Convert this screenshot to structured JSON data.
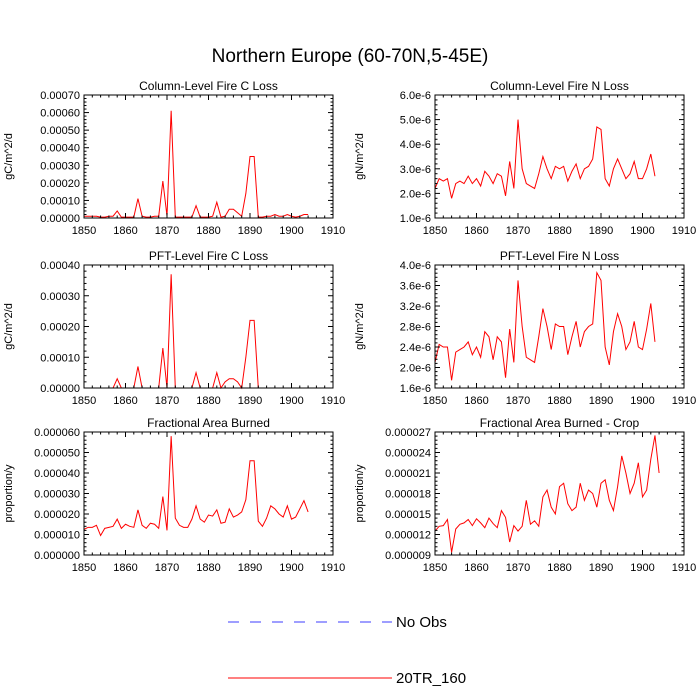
{
  "title": "Northern Europe (60-70N,5-45E)",
  "legend": [
    {
      "label": "No Obs",
      "color": "#3c3cff",
      "dashed": true
    },
    {
      "label": "20TR_160",
      "color": "#ff0000",
      "dashed": false
    }
  ],
  "chart_data": [
    {
      "type": "line",
      "title": "Column-Level Fire C Loss",
      "ylabel": "gC/m^2/d",
      "xlim": [
        1850,
        1910
      ],
      "ylim": [
        0,
        0.0007
      ],
      "xticks": [
        1850,
        1860,
        1870,
        1880,
        1890,
        1900,
        1910
      ],
      "xtick_labels": [
        "1850",
        "1860",
        "1870",
        "1880",
        "1890",
        "1900",
        "1910"
      ],
      "yticks": [
        0,
        0.0001,
        0.0002,
        0.0003,
        0.0004,
        0.0005,
        0.0006,
        0.0007
      ],
      "ytick_labels": [
        "0.00000",
        "0.00010",
        "0.00020",
        "0.00030",
        "0.00040",
        "0.00050",
        "0.00060",
        "0.00070"
      ],
      "series": [
        {
          "name": "20TR_160",
          "x_start": 1850,
          "values": [
            1e-05,
            1e-05,
            1e-05,
            1e-05,
            5e-06,
            5e-06,
            1e-05,
            1e-05,
            4e-05,
            5e-06,
            5e-06,
            5e-06,
            5e-06,
            0.00011,
            1e-05,
            5e-06,
            5e-06,
            1e-05,
            1e-05,
            0.00021,
            1e-05,
            0.00061,
            5e-06,
            5e-06,
            5e-06,
            5e-06,
            5e-06,
            7e-05,
            5e-06,
            5e-06,
            5e-06,
            1e-05,
            9e-05,
            5e-06,
            1e-05,
            5e-05,
            5e-05,
            3e-05,
            1e-05,
            0.00014,
            0.00035,
            0.00035,
            5e-06,
            5e-06,
            1e-05,
            1e-05,
            2e-05,
            1e-05,
            1e-05,
            2e-05,
            1e-05,
            5e-06,
            1e-05,
            2e-05,
            2e-05
          ]
        }
      ]
    },
    {
      "type": "line",
      "title": "Column-Level Fire N Loss",
      "ylabel": "gN/m^2/d",
      "xlim": [
        1850,
        1910
      ],
      "ylim": [
        1e-06,
        6e-06
      ],
      "xticks": [
        1850,
        1860,
        1870,
        1880,
        1890,
        1900,
        1910
      ],
      "xtick_labels": [
        "1850",
        "1860",
        "1870",
        "1880",
        "1890",
        "1900",
        "1910"
      ],
      "yticks": [
        1e-06,
        2e-06,
        3e-06,
        4e-06,
        5e-06,
        6e-06
      ],
      "ytick_labels": [
        "1.0e-6",
        "2.0e-6",
        "3.0e-6",
        "4.0e-6",
        "5.0e-6",
        "6.0e-6"
      ],
      "series": [
        {
          "name": "20TR_160",
          "x_start": 1850,
          "values": [
            2.2e-06,
            2.6e-06,
            2.5e-06,
            2.6e-06,
            1.8e-06,
            2.4e-06,
            2.5e-06,
            2.4e-06,
            2.7e-06,
            2.4e-06,
            2.6e-06,
            2.3e-06,
            2.9e-06,
            2.7e-06,
            2.4e-06,
            2.8e-06,
            2.7e-06,
            1.9e-06,
            3.3e-06,
            2.2e-06,
            5e-06,
            3e-06,
            2.4e-06,
            2.3e-06,
            2.2e-06,
            2.8e-06,
            3.5e-06,
            3e-06,
            2.6e-06,
            3.1e-06,
            3e-06,
            3.1e-06,
            2.5e-06,
            2.9e-06,
            3.2e-06,
            2.6e-06,
            3e-06,
            3.1e-06,
            3.4e-06,
            4.7e-06,
            4.6e-06,
            2.6e-06,
            2.3e-06,
            3e-06,
            3.4e-06,
            3e-06,
            2.6e-06,
            2.8e-06,
            3.3e-06,
            2.6e-06,
            2.6e-06,
            3e-06,
            3.6e-06,
            2.7e-06
          ]
        }
      ]
    },
    {
      "type": "line",
      "title": "PFT-Level Fire C Loss",
      "ylabel": "gC/m^2/d",
      "xlim": [
        1850,
        1910
      ],
      "ylim": [
        0,
        0.0004
      ],
      "xticks": [
        1850,
        1860,
        1870,
        1880,
        1890,
        1900,
        1910
      ],
      "xtick_labels": [
        "1850",
        "1860",
        "1870",
        "1880",
        "1890",
        "1900",
        "1910"
      ],
      "yticks": [
        0,
        0.0001,
        0.0002,
        0.0003,
        0.0004
      ],
      "ytick_labels": [
        "0.00000",
        "0.00010",
        "0.00020",
        "0.00030",
        "0.00040"
      ],
      "series": [
        {
          "name": "20TR_160",
          "x_start": 1850,
          "values": [
            0,
            0,
            0,
            0,
            0,
            0,
            0,
            0,
            3e-05,
            0,
            0,
            0,
            0,
            7e-05,
            0,
            0,
            0,
            0,
            0,
            0.00013,
            0,
            0.00037,
            0,
            0,
            0,
            0,
            0,
            5e-05,
            0,
            0,
            0,
            0,
            5e-05,
            0,
            2e-05,
            3e-05,
            3e-05,
            2e-05,
            0,
            0.0001,
            0.00022,
            0.00022,
            0,
            0,
            0,
            0,
            0,
            0,
            0,
            0,
            0,
            0,
            0,
            0,
            0
          ]
        }
      ]
    },
    {
      "type": "line",
      "title": "PFT-Level Fire N Loss",
      "ylabel": "gN/m^2/d",
      "xlim": [
        1850,
        1910
      ],
      "ylim": [
        1.6e-06,
        4e-06
      ],
      "xticks": [
        1850,
        1860,
        1870,
        1880,
        1890,
        1900,
        1910
      ],
      "xtick_labels": [
        "1850",
        "1860",
        "1870",
        "1880",
        "1890",
        "1900",
        "1910"
      ],
      "yticks": [
        1.6e-06,
        2e-06,
        2.4e-06,
        2.8e-06,
        3.2e-06,
        3.6e-06,
        4e-06
      ],
      "ytick_labels": [
        "1.6e-6",
        "2.0e-6",
        "2.4e-6",
        "2.8e-6",
        "3.2e-6",
        "3.6e-6",
        "4.0e-6"
      ],
      "series": [
        {
          "name": "20TR_160",
          "x_start": 1850,
          "values": [
            2.1e-06,
            2.45e-06,
            2.4e-06,
            2.4e-06,
            1.75e-06,
            2.3e-06,
            2.35e-06,
            2.4e-06,
            2.5e-06,
            2.25e-06,
            2.4e-06,
            2.2e-06,
            2.7e-06,
            2.6e-06,
            2.15e-06,
            2.6e-06,
            2.5e-06,
            1.8e-06,
            2.75e-06,
            2.1e-06,
            3.7e-06,
            2.8e-06,
            2.2e-06,
            2.15e-06,
            2.1e-06,
            2.6e-06,
            3.15e-06,
            2.8e-06,
            2.35e-06,
            2.85e-06,
            2.8e-06,
            2.8e-06,
            2.25e-06,
            2.6e-06,
            2.9e-06,
            2.4e-06,
            2.7e-06,
            2.8e-06,
            2.85e-06,
            3.85e-06,
            3.7e-06,
            2.4e-06,
            2.05e-06,
            2.7e-06,
            3.05e-06,
            2.8e-06,
            2.35e-06,
            2.5e-06,
            2.9e-06,
            2.4e-06,
            2.35e-06,
            2.75e-06,
            3.25e-06,
            2.5e-06
          ]
        }
      ]
    },
    {
      "type": "line",
      "title": "Fractional Area Burned",
      "ylabel": "proportion/y",
      "xlim": [
        1850,
        1910
      ],
      "ylim": [
        0,
        6e-05
      ],
      "xticks": [
        1850,
        1860,
        1870,
        1880,
        1890,
        1900,
        1910
      ],
      "xtick_labels": [
        "1850",
        "1860",
        "1870",
        "1880",
        "1890",
        "1900",
        "1910"
      ],
      "yticks": [
        0,
        1e-05,
        2e-05,
        3e-05,
        4e-05,
        5e-05,
        6e-05
      ],
      "ytick_labels": [
        "0.000000",
        "0.000010",
        "0.000020",
        "0.000030",
        "0.000040",
        "0.000050",
        "0.000060"
      ],
      "series": [
        {
          "name": "20TR_160",
          "x_start": 1850,
          "values": [
            1.25e-05,
            1.35e-05,
            1.35e-05,
            1.45e-05,
            9.5e-06,
            1.3e-05,
            1.35e-05,
            1.4e-05,
            1.75e-05,
            1.3e-05,
            1.5e-05,
            1.4e-05,
            1.35e-05,
            2.2e-05,
            1.45e-05,
            1.3e-05,
            1.55e-05,
            1.5e-05,
            1.3e-05,
            2.85e-05,
            1.2e-05,
            5.8e-05,
            1.8e-05,
            1.45e-05,
            1.35e-05,
            1.35e-05,
            1.75e-05,
            2.4e-05,
            1.75e-05,
            1.6e-05,
            1.95e-05,
            1.9e-05,
            2.2e-05,
            1.55e-05,
            1.6e-05,
            2.25e-05,
            1.85e-05,
            1.95e-05,
            2.1e-05,
            2.7e-05,
            4.6e-05,
            4.6e-05,
            1.65e-05,
            1.4e-05,
            1.8e-05,
            2.4e-05,
            2.25e-05,
            2e-05,
            1.85e-05,
            2.4e-05,
            1.75e-05,
            1.85e-05,
            2.25e-05,
            2.65e-05,
            2.1e-05
          ]
        }
      ]
    },
    {
      "type": "line",
      "title": "Fractional Area Burned - Crop",
      "ylabel": "proportion/y",
      "xlim": [
        1850,
        1910
      ],
      "ylim": [
        9e-06,
        2.7e-05
      ],
      "xticks": [
        1850,
        1860,
        1870,
        1880,
        1890,
        1900,
        1910
      ],
      "xtick_labels": [
        "1850",
        "1860",
        "1870",
        "1880",
        "1890",
        "1900",
        "1910"
      ],
      "yticks": [
        9e-06,
        1.2e-05,
        1.5e-05,
        1.8e-05,
        2.1e-05,
        2.4e-05,
        2.7e-05
      ],
      "ytick_labels": [
        "0.000009",
        "0.000012",
        "0.000015",
        "0.000018",
        "0.000021",
        "0.000024",
        "0.000027"
      ],
      "series": [
        {
          "name": "20TR_160",
          "x_start": 1850,
          "values": [
            1.25e-05,
            1.32e-05,
            1.33e-05,
            1.42e-05,
            9.4e-06,
            1.28e-05,
            1.35e-05,
            1.37e-05,
            1.42e-05,
            1.33e-05,
            1.43e-05,
            1.37e-05,
            1.3e-05,
            1.44e-05,
            1.36e-05,
            1.3e-05,
            1.55e-05,
            1.45e-05,
            1.09e-05,
            1.33e-05,
            1.25e-05,
            1.32e-05,
            1.7e-05,
            1.35e-05,
            1.4e-05,
            1.32e-05,
            1.75e-05,
            1.85e-05,
            1.6e-05,
            1.5e-05,
            1.9e-05,
            1.95e-05,
            1.65e-05,
            1.55e-05,
            1.6e-05,
            1.95e-05,
            1.7e-05,
            1.85e-05,
            1.8e-05,
            1.6e-05,
            1.95e-05,
            2e-05,
            1.7e-05,
            1.55e-05,
            1.9e-05,
            2.35e-05,
            2.1e-05,
            1.8e-05,
            1.95e-05,
            2.25e-05,
            1.75e-05,
            1.85e-05,
            2.3e-05,
            2.65e-05,
            2.1e-05
          ]
        }
      ]
    }
  ]
}
